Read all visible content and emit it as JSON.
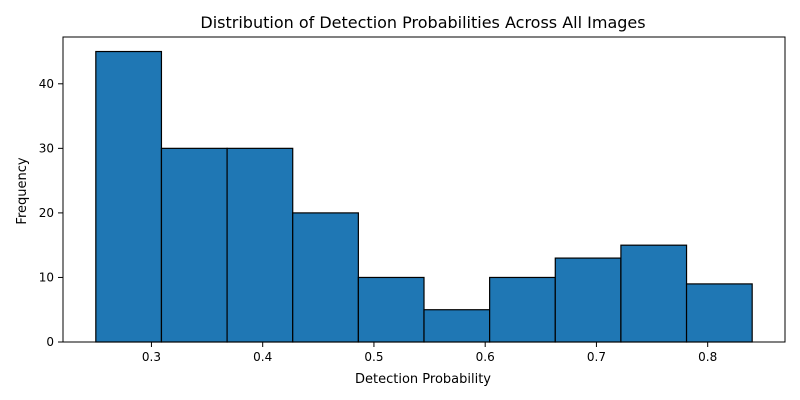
{
  "chart_data": {
    "type": "bar",
    "title": "Distribution of Detection Probabilities Across All Images",
    "xlabel": "Detection Probability",
    "ylabel": "Frequency",
    "bin_edges": [
      0.25,
      0.309,
      0.368,
      0.427,
      0.486,
      0.545,
      0.604,
      0.663,
      0.722,
      0.781,
      0.84
    ],
    "values": [
      45,
      30,
      30,
      20,
      10,
      5,
      10,
      13,
      15,
      9
    ],
    "xlim": [
      0.2205,
      0.8695
    ],
    "ylim": [
      0,
      47.25
    ],
    "xticks": [
      0.3,
      0.4,
      0.5,
      0.6,
      0.7,
      0.8
    ],
    "xtick_labels": [
      "0.3",
      "0.4",
      "0.5",
      "0.6",
      "0.7",
      "0.8"
    ],
    "yticks": [
      0,
      10,
      20,
      30,
      40
    ],
    "ytick_labels": [
      "0",
      "10",
      "20",
      "30",
      "40"
    ],
    "bar_color": "#1f77b4",
    "edge_color": "#000000",
    "grid": false,
    "legend": "none"
  }
}
